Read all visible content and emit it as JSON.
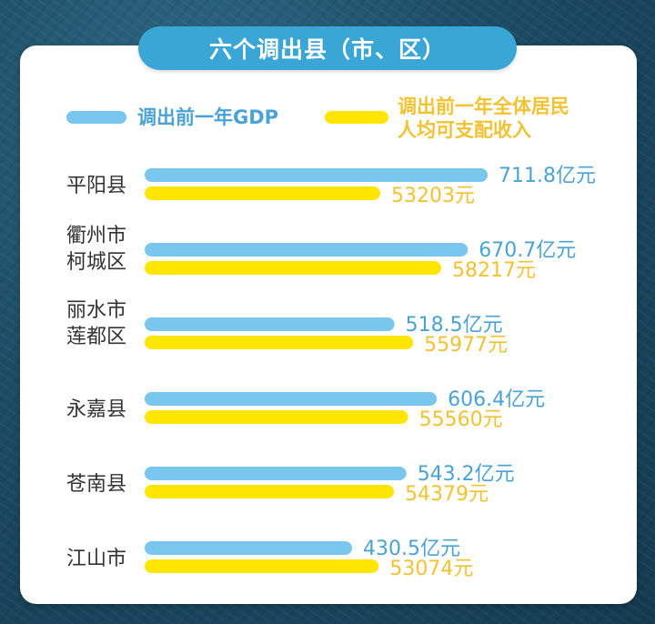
{
  "title": "六个调出县（市、区）",
  "colors": {
    "gdp": "#79c6ee",
    "gdp_text": "#4aa3d4",
    "income": "#ffe600",
    "income_text": "#f2c230",
    "title_bg": "#3aa6d6"
  },
  "chart_data": {
    "type": "bar",
    "orientation": "horizontal",
    "legend": [
      {
        "name": "调出前一年GDP"
      },
      {
        "name": "调出前一年全体居民人均可支配收入"
      }
    ],
    "legend_lines": [
      [
        "调出前一年GDP"
      ],
      [
        "调出前一年全体居民",
        "人均可支配收入"
      ]
    ],
    "categories": [
      [
        "平阳县"
      ],
      [
        "衢州市",
        "柯城区"
      ],
      [
        "丽水市",
        "莲都区"
      ],
      [
        "永嘉县"
      ],
      [
        "苍南县"
      ],
      [
        "江山市"
      ]
    ],
    "series": [
      {
        "name": "调出前一年GDP",
        "unit": "亿元",
        "values": [
          711.8,
          670.7,
          518.5,
          606.4,
          543.2,
          430.5
        ],
        "labels": [
          "711.8亿元",
          "670.7亿元",
          "518.5亿元",
          "606.4亿元",
          "543.2亿元",
          "430.5亿元"
        ]
      },
      {
        "name": "调出前一年全体居民人均可支配收入",
        "unit": "元",
        "values": [
          53203,
          58217,
          55977,
          55560,
          54379,
          53074
        ],
        "labels": [
          "53203元",
          "58217元",
          "55977元",
          "55560元",
          "54379元",
          "53074元"
        ]
      }
    ]
  }
}
